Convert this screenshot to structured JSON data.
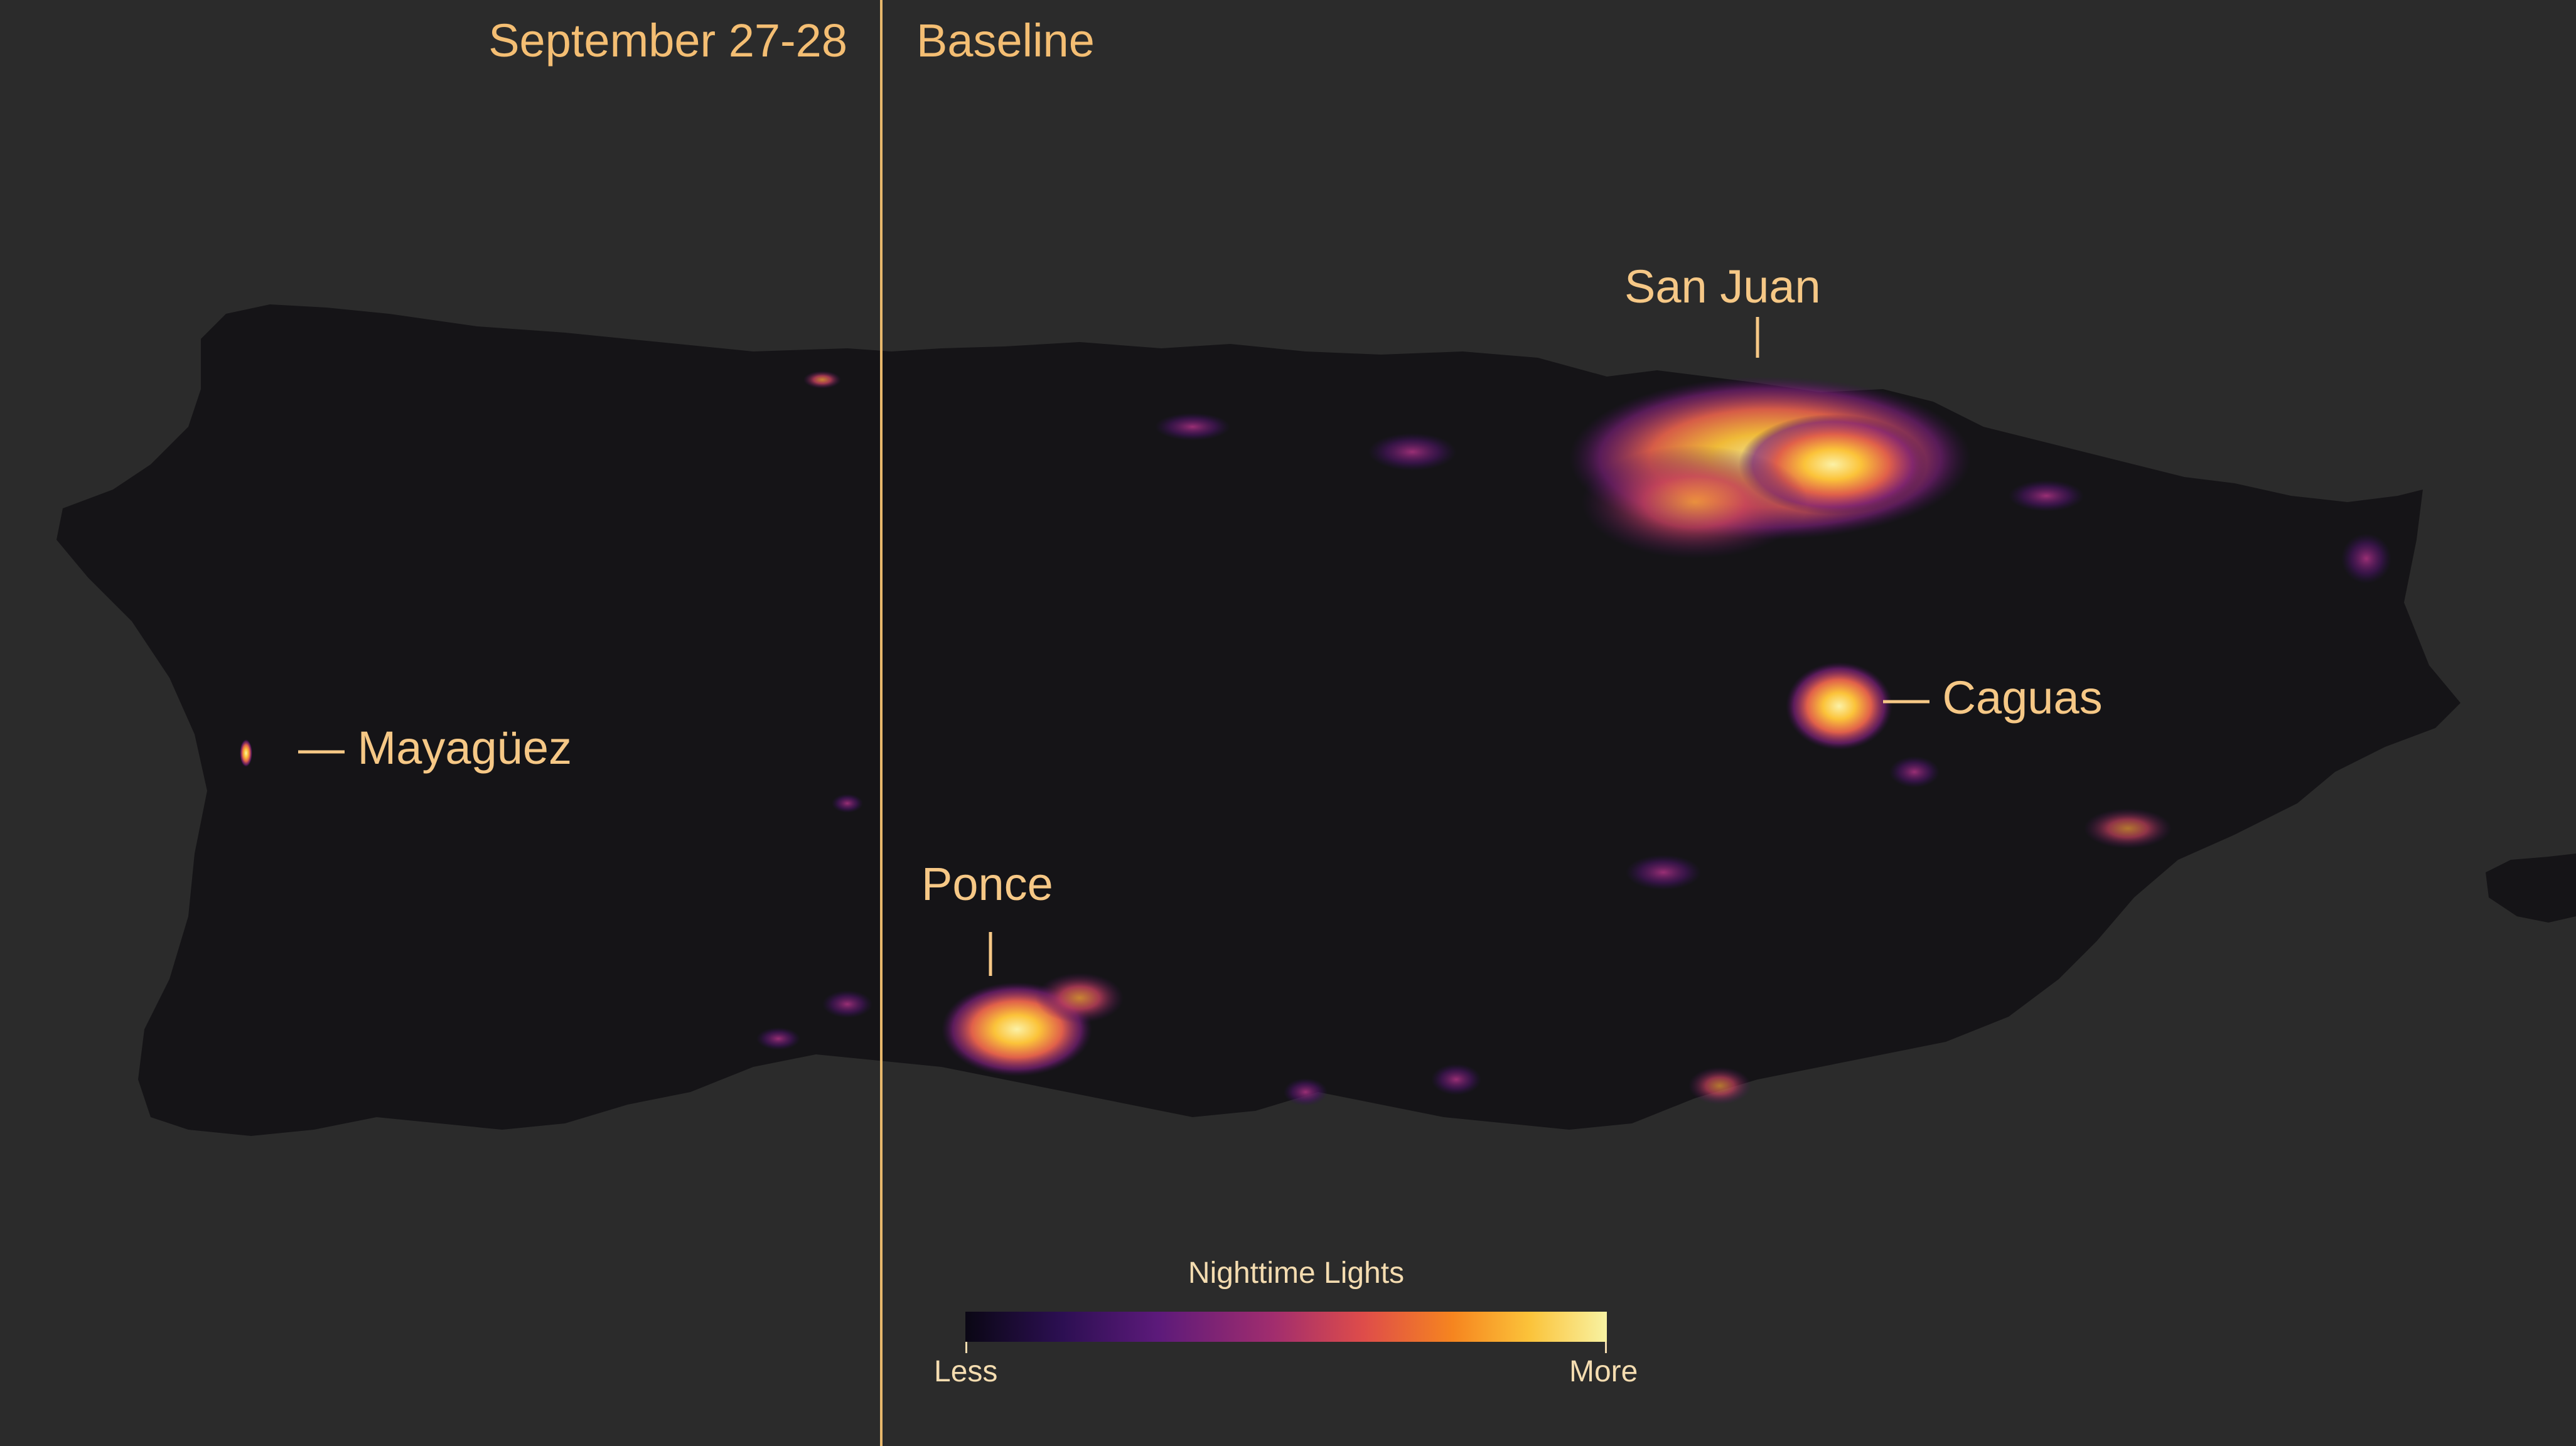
{
  "panels": {
    "left_title": "September 27-28",
    "right_title": "Baseline"
  },
  "cities": {
    "san_juan": "San Juan",
    "caguas": "— Caguas",
    "mayaguez": "— Mayagüez",
    "ponce": "Ponce"
  },
  "legend": {
    "title": "Nighttime Lights",
    "less": "Less",
    "more": "More"
  },
  "colors": {
    "background": "#2b2b2b",
    "land": "#151417",
    "divider": "#e8b86c",
    "label": "#f4be73",
    "light_low": "#5c1a7a",
    "light_mid": "#f6851f",
    "light_high": "#f8f2a2"
  }
}
